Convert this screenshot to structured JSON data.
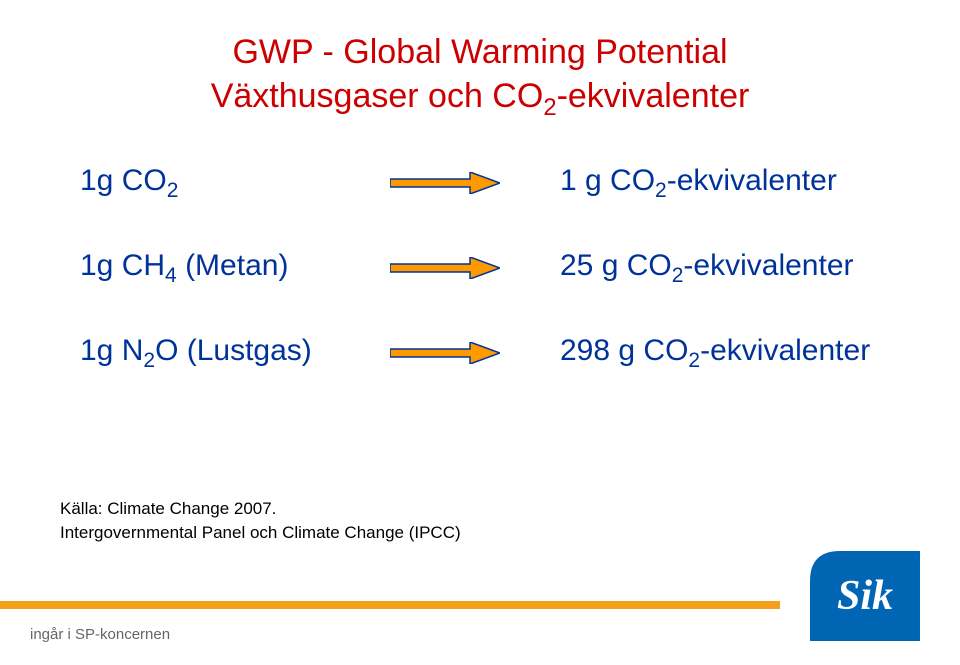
{
  "title": {
    "line1_pre": "GWP - Global Warming Potential",
    "line2_pre": "Växthusgaser och CO",
    "line2_sub": "2",
    "line2_post": "-ekvivalenter",
    "color": "#cc0000"
  },
  "body_text_color": "#003399",
  "arrow": {
    "fill": "#ff9900",
    "stroke": "#003399",
    "stroke_width": 1.5
  },
  "rows": [
    {
      "left_pre": "1g CO",
      "left_sub": "2",
      "left_post": "",
      "right_pre": "1 g CO",
      "right_sub": "2",
      "right_post": "-ekvivalenter"
    },
    {
      "left_pre": "1g CH",
      "left_sub": "4",
      "left_post": " (Metan)",
      "right_pre": "25 g CO",
      "right_sub": "2",
      "right_post": "-ekvivalenter"
    },
    {
      "left_pre": "1g N",
      "left_sub": "2",
      "left_post": "O (Lustgas)",
      "right_pre": "298 g CO",
      "right_sub": "2",
      "right_post": "-ekvivalenter"
    }
  ],
  "source": {
    "line1": "Källa: Climate Change 2007.",
    "line2": "Intergovernmental Panel och Climate Change (IPCC)",
    "color": "#000000"
  },
  "footer": {
    "bar_color": "#f4a01a",
    "text": "ingår i SP-koncernen",
    "text_color": "#666666"
  },
  "logo": {
    "bg": "#0066b3",
    "text": "Sik",
    "text_color": "#ffffff"
  }
}
